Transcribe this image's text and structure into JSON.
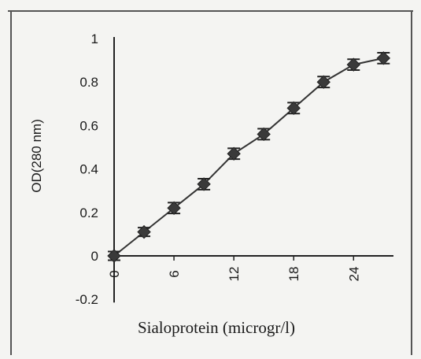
{
  "chart_data": {
    "type": "line",
    "title": "",
    "xlabel": "Sialoprotein (microgr/l)",
    "ylabel": "OD(280 nm)",
    "xlim": [
      0,
      28
    ],
    "ylim": [
      -0.2,
      1
    ],
    "x_ticks": [
      0,
      6,
      12,
      18,
      24
    ],
    "x_tick_labels": [
      "0",
      "6",
      "12",
      "18",
      "24"
    ],
    "y_ticks": [
      1,
      0.8,
      0.6,
      0.4,
      0.2,
      0,
      -0.2
    ],
    "y_tick_labels": [
      "1",
      "0.8",
      "0.6",
      "0.4",
      "0.2",
      "0",
      "-0.2"
    ],
    "grid": false,
    "legend": "none",
    "marker": "diamond",
    "error_bars": true,
    "colors": {
      "line": "#333333",
      "marker": "#3a3a3a",
      "axis": "#222222"
    },
    "series": [
      {
        "x": [
          0,
          3,
          6,
          9,
          12,
          15,
          18,
          21,
          24,
          27
        ],
        "y": [
          0.0,
          0.11,
          0.22,
          0.33,
          0.47,
          0.56,
          0.68,
          0.8,
          0.88,
          0.91
        ],
        "error": [
          0.02,
          0.02,
          0.025,
          0.025,
          0.025,
          0.025,
          0.025,
          0.025,
          0.025,
          0.025
        ]
      }
    ]
  }
}
